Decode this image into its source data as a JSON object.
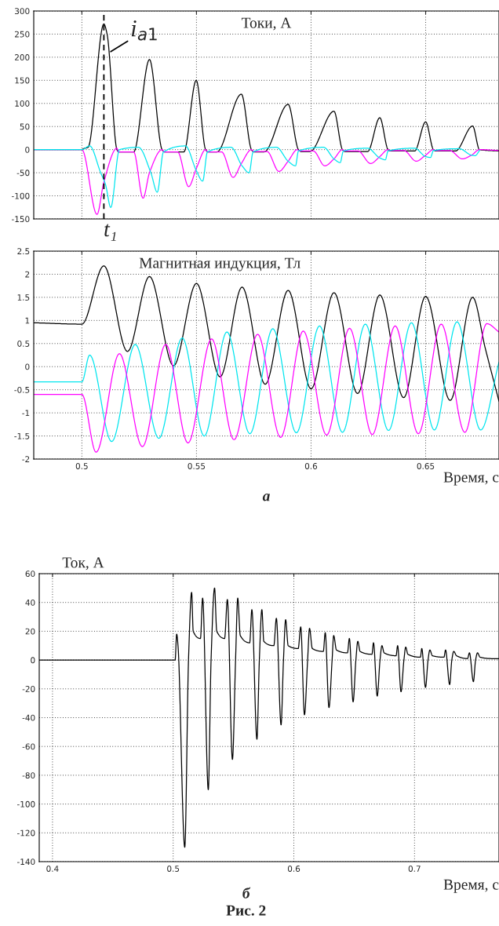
{
  "chart_data": [
    {
      "type": "line",
      "title": "Токи, А",
      "xlim": [
        0.479,
        0.682
      ],
      "xticks": [
        0.5,
        0.55,
        0.6,
        0.65
      ],
      "ylim": [
        -150,
        300
      ],
      "yticks": [
        -150,
        -100,
        -50,
        0,
        50,
        100,
        150,
        200,
        250,
        300
      ],
      "tick_labels": "y",
      "grid": true,
      "series": [
        {
          "color": "#000000",
          "x": [
            0.479,
            0.5,
            0.5007,
            0.5027,
            0.5096,
            0.511,
            0.5153,
            0.516,
            0.5226,
            0.5295,
            0.535,
            0.536,
            0.5445,
            0.5499,
            0.554,
            0.555,
            0.5589,
            0.5696,
            0.574,
            0.575,
            0.5795,
            0.59,
            0.5945,
            0.5955,
            0.5995,
            0.61,
            0.6137,
            0.6147,
            0.6247,
            0.63,
            0.6336,
            0.6346,
            0.6452,
            0.65,
            0.6534,
            0.6544,
            0.663,
            0.6705,
            0.6735,
            0.682
          ],
          "values": [
            0,
            0,
            2,
            5,
            272,
            250,
            0,
            -5,
            -5,
            195,
            0,
            -5,
            -5,
            150,
            0,
            -5,
            -5,
            120,
            0,
            -5,
            -5,
            98,
            0,
            -4,
            -4,
            83,
            0,
            -4,
            -4,
            69,
            0,
            -3,
            -3,
            60,
            0,
            -3,
            -3,
            51,
            0,
            -3
          ]
        },
        {
          "color": "#ff00ff",
          "x": [
            0.479,
            0.5,
            0.5066,
            0.5096,
            0.5153,
            0.516,
            0.5226,
            0.5267,
            0.5295,
            0.535,
            0.536,
            0.5418,
            0.5466,
            0.55,
            0.554,
            0.555,
            0.561,
            0.566,
            0.5696,
            0.574,
            0.575,
            0.5808,
            0.586,
            0.59,
            0.594,
            0.595,
            0.601,
            0.606,
            0.61,
            0.6137,
            0.6147,
            0.6205,
            0.626,
            0.63,
            0.6336,
            0.6346,
            0.6405,
            0.6459,
            0.65,
            0.6534,
            0.6544,
            0.6605,
            0.666,
            0.67,
            0.6735,
            0.682
          ],
          "values": [
            0,
            0,
            -140,
            -70,
            3,
            -5,
            -5,
            -105,
            -50,
            0,
            -5,
            -5,
            -80,
            -40,
            0,
            -5,
            -5,
            -60,
            -30,
            0,
            -4,
            -4,
            -47,
            -25,
            0,
            -3,
            -3,
            -35,
            -20,
            0,
            -3,
            -3,
            -30,
            -15,
            0,
            -2,
            -2,
            -25,
            -12,
            0,
            -2,
            -2,
            -20,
            -12,
            0,
            -2
          ]
        },
        {
          "color": "#00e5ee",
          "x": [
            0.479,
            0.5,
            0.5034,
            0.5082,
            0.5103,
            0.5126,
            0.5164,
            0.5247,
            0.5301,
            0.5329,
            0.5356,
            0.5452,
            0.5499,
            0.5527,
            0.5548,
            0.5651,
            0.5699,
            0.573,
            0.5747,
            0.5849,
            0.59,
            0.5932,
            0.5945,
            0.6055,
            0.61,
            0.6127,
            0.6141,
            0.6247,
            0.63,
            0.6324,
            0.6336,
            0.6452,
            0.65,
            0.6521,
            0.6534,
            0.6647,
            0.67,
            0.6716,
            0.6735
          ],
          "values": [
            0,
            0,
            8,
            -50,
            -75,
            -125,
            0,
            5,
            -50,
            -92,
            -5,
            8,
            -45,
            -68,
            -5,
            5,
            -35,
            -50,
            -5,
            5,
            -25,
            -35,
            -3,
            5,
            -20,
            -28,
            -3,
            3,
            -18,
            -22,
            -3,
            3,
            -15,
            -17,
            -2,
            2,
            -12,
            -13,
            -2
          ]
        }
      ],
      "ref_lines": [
        {
          "axis": "x",
          "value": 0.5096,
          "label": "t₁",
          "color": "#000000",
          "line_style": "dashed"
        }
      ],
      "annotations": [
        {
          "text": "i$_{a1}$",
          "x": 0.5126,
          "y": 212
        }
      ]
    },
    {
      "type": "line",
      "title": "Магнитная индукция, Тл",
      "xlabel": "Время, с",
      "xlim": [
        0.479,
        0.682
      ],
      "xticks": [
        0.5,
        0.55,
        0.6,
        0.65
      ],
      "ylim": [
        -2,
        2.5
      ],
      "yticks": [
        -2,
        -1.5,
        -1,
        -0.5,
        0,
        0.5,
        1,
        1.5,
        2,
        2.5
      ],
      "grid": true,
      "series": [
        {
          "color": "#000000",
          "x": [
            0.479,
            0.5,
            0.5096,
            0.5199,
            0.5295,
            0.54,
            0.55,
            0.5603,
            0.5699,
            0.58,
            0.59,
            0.6,
            0.61,
            0.6203,
            0.63,
            0.6404,
            0.65,
            0.6607,
            0.6705,
            0.676,
            0.682
          ],
          "values": [
            0.95,
            0.92,
            2.18,
            0.33,
            1.95,
            0.02,
            1.8,
            -0.22,
            1.72,
            -0.38,
            1.65,
            -0.48,
            1.6,
            -0.58,
            1.55,
            -0.67,
            1.52,
            -0.73,
            1.5,
            0.4,
            -0.75
          ]
        },
        {
          "color": "#00e5ee",
          "x": [
            0.479,
            0.5,
            0.5034,
            0.513,
            0.5233,
            0.5336,
            0.5438,
            0.5534,
            0.5633,
            0.5733,
            0.5833,
            0.5936,
            0.6037,
            0.6137,
            0.6237,
            0.6338,
            0.6438,
            0.6538,
            0.6637,
            0.674,
            0.682
          ],
          "values": [
            -0.33,
            -0.33,
            0.25,
            -1.62,
            0.48,
            -1.55,
            0.62,
            -1.5,
            0.75,
            -1.45,
            0.82,
            -1.43,
            0.88,
            -1.42,
            0.92,
            -1.38,
            0.95,
            -1.37,
            0.97,
            -1.37,
            0.1
          ]
        },
        {
          "color": "#ff00ff",
          "x": [
            0.479,
            0.5,
            0.5062,
            0.5164,
            0.5264,
            0.5366,
            0.5463,
            0.5566,
            0.5664,
            0.5767,
            0.5867,
            0.5966,
            0.6068,
            0.6168,
            0.6267,
            0.6367,
            0.6468,
            0.6568,
            0.6671,
            0.6767,
            0.682
          ],
          "values": [
            -0.6,
            -0.6,
            -1.85,
            0.28,
            -1.73,
            0.48,
            -1.65,
            0.6,
            -1.58,
            0.7,
            -1.53,
            0.77,
            -1.48,
            0.83,
            -1.47,
            0.88,
            -1.45,
            0.92,
            -1.42,
            0.93,
            0.75
          ]
        }
      ],
      "annotations": [
        "а"
      ]
    },
    {
      "type": "line",
      "title": "Ток, А",
      "xlabel": "Время, с",
      "xlim": [
        0.389,
        0.77
      ],
      "xticks": [
        0.4,
        0.5,
        0.6,
        0.7
      ],
      "ylim": [
        -140,
        60
      ],
      "yticks": [
        -140,
        -120,
        -100,
        -80,
        -60,
        -40,
        -20,
        0,
        20,
        40,
        60
      ],
      "grid": true,
      "series": [
        {
          "color": "#000000",
          "x": [
            0.389,
            0.5016,
            0.5029,
            0.504,
            0.5096,
            0.5127,
            0.5153,
            0.5166,
            0.5226,
            0.5244,
            0.5291,
            0.5314,
            0.5343,
            0.5361,
            0.5426,
            0.5449,
            0.5491,
            0.5517,
            0.5535,
            0.5556,
            0.5634,
            0.5652,
            0.5694,
            0.5714,
            0.5735,
            0.5751,
            0.5834,
            0.5855,
            0.5894,
            0.5914,
            0.5932,
            0.5953,
            0.6036,
            0.6057,
            0.6088,
            0.6114,
            0.613,
            0.6153,
            0.6244,
            0.626,
            0.6291,
            0.6317,
            0.633,
            0.6353,
            0.6444,
            0.646,
            0.6491,
            0.6514,
            0.653,
            0.6549,
            0.6647,
            0.666,
            0.6691,
            0.6714,
            0.673,
            0.6748,
            0.6847,
            0.686,
            0.6888,
            0.6912,
            0.6927,
            0.6945,
            0.7049,
            0.706,
            0.7091,
            0.7112,
            0.7127,
            0.7148,
            0.7244,
            0.7257,
            0.7291,
            0.7309,
            0.7325,
            0.7348,
            0.7439,
            0.7455,
            0.7488,
            0.7506,
            0.7522,
            0.7543,
            0.7642,
            0.77
          ],
          "values": [
            0,
            0,
            18,
            10,
            -130,
            0,
            47,
            20,
            15,
            43,
            -90,
            0,
            50,
            20,
            15,
            42,
            -69,
            0,
            43,
            17,
            12,
            35,
            -55,
            0,
            35,
            13,
            10,
            29,
            -45,
            0,
            28,
            10,
            8,
            23,
            -38,
            0,
            22,
            8,
            6,
            19,
            -33,
            0,
            17,
            7,
            5,
            15,
            -29,
            0,
            13,
            6,
            4,
            12,
            -25,
            0,
            10,
            5,
            3,
            10,
            -22,
            0,
            9,
            4,
            2,
            8,
            -19,
            0,
            7,
            3,
            2,
            7,
            -17,
            0,
            6,
            3,
            1,
            5,
            -15,
            0,
            5,
            2,
            1,
            1
          ]
        }
      ],
      "annotations": [
        "б",
        "Рис. 2"
      ]
    }
  ]
}
